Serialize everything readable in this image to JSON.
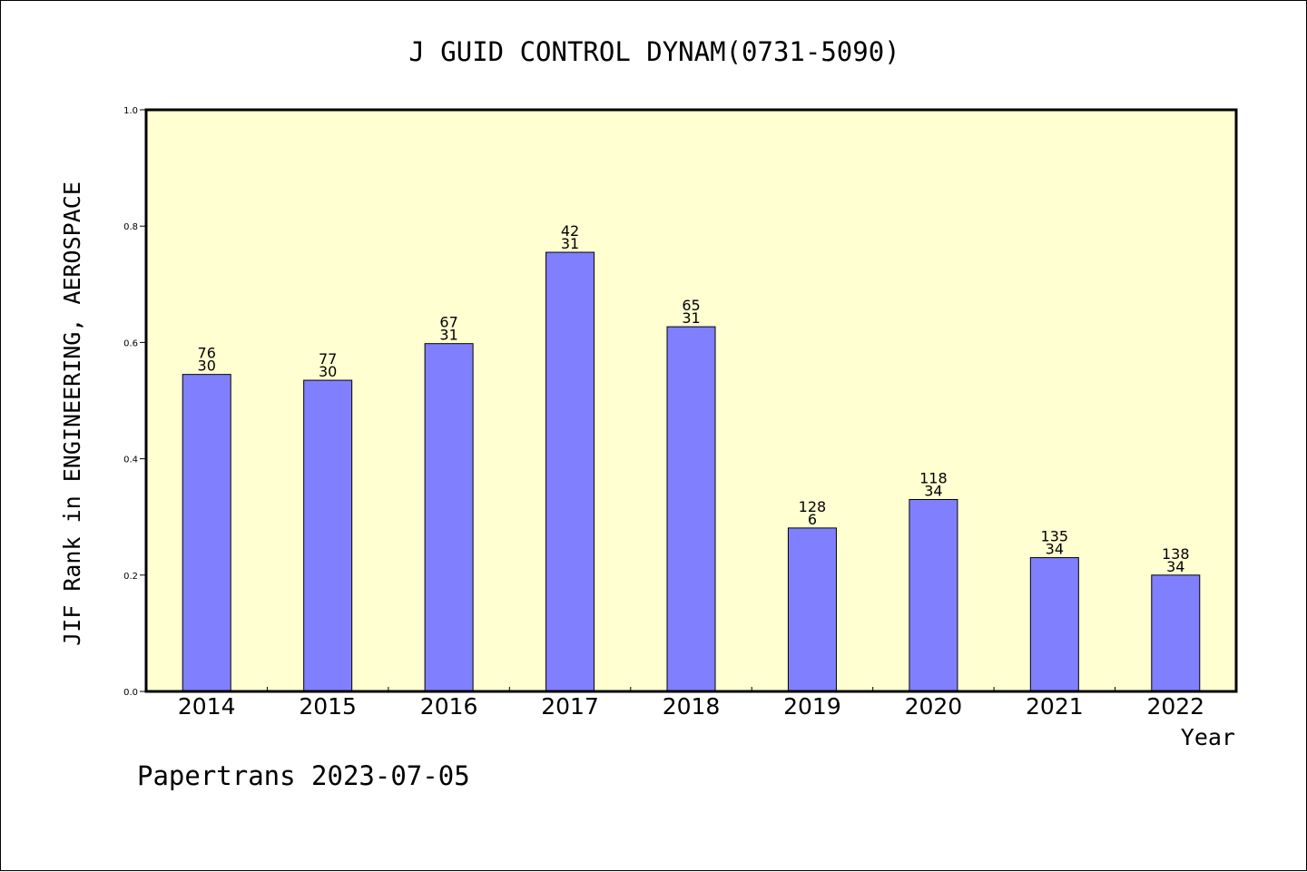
{
  "chart_data": {
    "type": "bar",
    "title": "J GUID CONTROL DYNAM(0731-5090)",
    "xlabel": "Year",
    "ylabel": "JIF Rank in ENGINEERING, AEROSPACE",
    "ylim": [
      0,
      1.0
    ],
    "yticks": [
      "0.0",
      "0.2",
      "0.4",
      "0.6",
      "0.8",
      "1.0"
    ],
    "ytick_values": [
      0,
      0.2,
      0.4,
      0.6,
      0.8,
      1.0
    ],
    "categories": [
      "2014",
      "2015",
      "2016",
      "2017",
      "2018",
      "2019",
      "2020",
      "2021",
      "2022"
    ],
    "values": [
      0.545,
      0.535,
      0.598,
      0.755,
      0.627,
      0.281,
      0.33,
      0.23,
      0.2
    ],
    "label_top": [
      "76",
      "77",
      "67",
      "42",
      "65",
      "128",
      "118",
      "135",
      "138"
    ],
    "label_bottom": [
      "30",
      "30",
      "31",
      "31",
      "31",
      "6",
      "34",
      "34",
      "34"
    ],
    "grid": false,
    "colors": {
      "plot_background": "#FFFFD2",
      "bar_fill": "#8080FF",
      "bar_stroke": "#000000",
      "axis": "#000000"
    }
  },
  "footer": "Papertrans 2023-07-05"
}
